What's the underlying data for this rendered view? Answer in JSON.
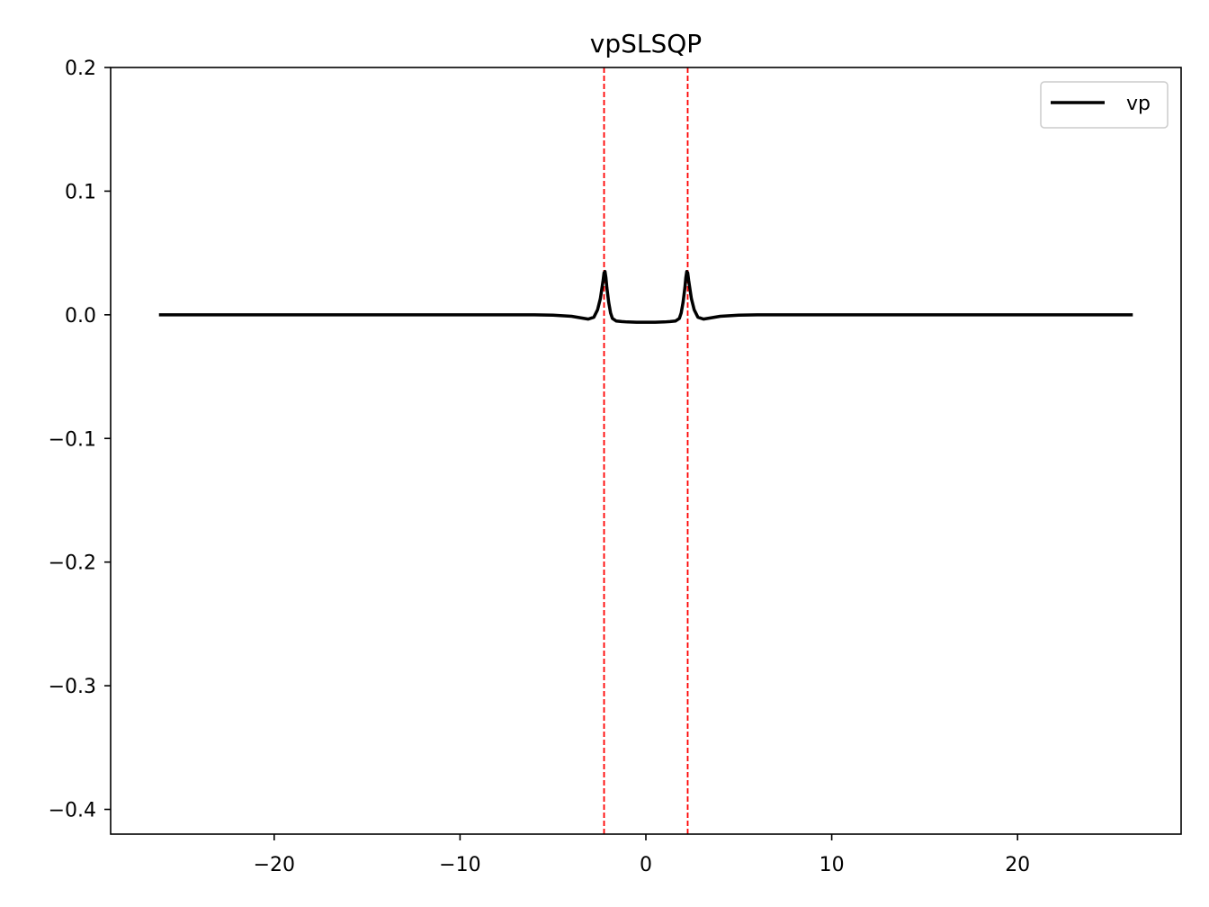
{
  "chart_data": {
    "type": "line",
    "title": "vpSLSQP",
    "xlabel": "",
    "ylabel": "",
    "xlim": [
      -28.8,
      28.8
    ],
    "ylim": [
      -0.42,
      0.2
    ],
    "xticks": [
      -20,
      -10,
      0,
      10,
      20
    ],
    "xtick_labels": [
      "−20",
      "−10",
      "0",
      "10",
      "20"
    ],
    "yticks": [
      0.2,
      0.1,
      0.0,
      -0.1,
      -0.2,
      -0.3,
      -0.4
    ],
    "ytick_labels": [
      "0.2",
      "0.1",
      "0.0",
      "−0.1",
      "−0.2",
      "−0.3",
      "−0.4"
    ],
    "grid": false,
    "legend": {
      "placement": "top-right",
      "entries": [
        {
          "name": "vp",
          "color": "#000000"
        }
      ]
    },
    "series": [
      {
        "name": "vp",
        "color": "#000000",
        "x": [
          -26.2,
          -20,
          -10,
          -8,
          -6,
          -5,
          -4,
          -3.5,
          -3.1,
          -2.8,
          -2.6,
          -2.45,
          -2.3,
          -2.25,
          -2.2,
          -2.15,
          -2.1,
          -2.0,
          -1.9,
          -1.8,
          -1.6,
          -1.3,
          -1.0,
          -0.5,
          0,
          0.5,
          1.0,
          1.3,
          1.6,
          1.8,
          1.9,
          2.0,
          2.1,
          2.15,
          2.2,
          2.25,
          2.3,
          2.45,
          2.6,
          2.8,
          3.1,
          3.5,
          4,
          5,
          6,
          8,
          10,
          20,
          26.2
        ],
        "y": [
          0,
          0,
          0,
          0,
          0,
          -0.0003,
          -0.0012,
          -0.0025,
          -0.0035,
          -0.002,
          0.004,
          0.013,
          0.028,
          0.034,
          0.035,
          0.03,
          0.022,
          0.01,
          0.0015,
          -0.003,
          -0.005,
          -0.0055,
          -0.0058,
          -0.006,
          -0.006,
          -0.006,
          -0.0058,
          -0.0055,
          -0.005,
          -0.003,
          0.0015,
          0.01,
          0.022,
          0.03,
          0.035,
          0.034,
          0.028,
          0.013,
          0.004,
          -0.002,
          -0.0035,
          -0.0025,
          -0.0012,
          -0.0003,
          0,
          0,
          0,
          0,
          0
        ]
      }
    ],
    "vlines": [
      {
        "x": -2.25,
        "color": "#ff0000",
        "style": "dashed"
      },
      {
        "x": 2.25,
        "color": "#ff0000",
        "style": "dashed"
      }
    ]
  }
}
